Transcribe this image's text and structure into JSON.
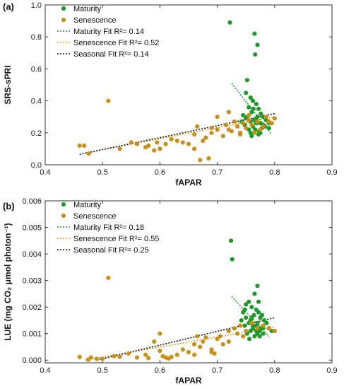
{
  "chart_data": [
    {
      "type": "scatter",
      "panel_label": "(a)",
      "xlabel": "fAPAR",
      "ylabel": "SRS-sPRI",
      "xlim": [
        0.4,
        0.9
      ],
      "ylim": [
        0.0,
        1.0
      ],
      "xticks": [
        0.4,
        0.5,
        0.6,
        0.7,
        0.8,
        0.9
      ],
      "yticks": [
        0.0,
        0.2,
        0.4,
        0.6,
        0.8,
        1.0
      ],
      "xtick_labels": [
        "0.4",
        "0.5",
        "0.6",
        "0.7",
        "0.8",
        "0.9"
      ],
      "ytick_labels": [
        "0.0",
        "0.2",
        "0.4",
        "0.6",
        "0.8",
        "1.0"
      ],
      "grid": false,
      "legend_position": "top-left",
      "series": [
        {
          "name": "Maturity",
          "kind": "points",
          "color": "#1f9a2a",
          "x": [
            0.722,
            0.765,
            0.77,
            0.766,
            0.752,
            0.75,
            0.758,
            0.762,
            0.768,
            0.772,
            0.755,
            0.76,
            0.776,
            0.78,
            0.745,
            0.75,
            0.764,
            0.77,
            0.758,
            0.775,
            0.785,
            0.79,
            0.748,
            0.755,
            0.762,
            0.768,
            0.773,
            0.78,
            0.742,
            0.758,
            0.766,
            0.772,
            0.778,
            0.752,
            0.76,
            0.768,
            0.783,
            0.775,
            0.79,
            0.763
          ],
          "y": [
            0.89,
            0.82,
            0.75,
            0.69,
            0.53,
            0.45,
            0.42,
            0.4,
            0.38,
            0.35,
            0.36,
            0.33,
            0.32,
            0.3,
            0.31,
            0.29,
            0.28,
            0.3,
            0.27,
            0.26,
            0.28,
            0.23,
            0.25,
            0.22,
            0.24,
            0.26,
            0.21,
            0.25,
            0.27,
            0.2,
            0.22,
            0.19,
            0.23,
            0.3,
            0.18,
            0.29,
            0.24,
            0.2,
            0.26,
            0.35
          ]
        },
        {
          "name": "Senescence",
          "kind": "points",
          "color": "#c8901a",
          "x": [
            0.46,
            0.468,
            0.476,
            0.51,
            0.53,
            0.55,
            0.56,
            0.575,
            0.58,
            0.59,
            0.595,
            0.6,
            0.61,
            0.62,
            0.63,
            0.64,
            0.65,
            0.66,
            0.665,
            0.67,
            0.675,
            0.68,
            0.685,
            0.69,
            0.7,
            0.71,
            0.715,
            0.72,
            0.725,
            0.73,
            0.735,
            0.74,
            0.745,
            0.75,
            0.755,
            0.76,
            0.765,
            0.77,
            0.775,
            0.78,
            0.785,
            0.79,
            0.795,
            0.8,
            0.7,
            0.72,
            0.69,
            0.74,
            0.66,
            0.755
          ],
          "y": [
            0.12,
            0.12,
            0.07,
            0.4,
            0.1,
            0.14,
            0.13,
            0.11,
            0.12,
            0.09,
            0.14,
            0.1,
            0.13,
            0.16,
            0.15,
            0.14,
            0.13,
            0.19,
            0.24,
            0.03,
            0.15,
            0.17,
            0.04,
            0.2,
            0.22,
            0.18,
            0.25,
            0.22,
            0.21,
            0.27,
            0.24,
            0.19,
            0.26,
            0.23,
            0.28,
            0.25,
            0.2,
            0.27,
            0.22,
            0.24,
            0.3,
            0.27,
            0.26,
            0.29,
            0.3,
            0.33,
            0.23,
            0.2,
            0.1,
            0.31
          ]
        },
        {
          "name": "Maturity Fit",
          "r2_label": "R²= 0.14",
          "kind": "fit",
          "color": "#1f9a2a",
          "x": [
            0.725,
            0.795
          ],
          "y": [
            0.51,
            0.19
          ]
        },
        {
          "name": "Senescence Fit",
          "r2_label": "R²= 0.52",
          "kind": "fit",
          "color": "#e8a020",
          "x": [
            0.47,
            0.8
          ],
          "y": [
            0.075,
            0.3
          ]
        },
        {
          "name": "Seasonal Fit",
          "r2_label": "R²= 0.14",
          "kind": "fit",
          "color": "#111111",
          "x": [
            0.46,
            0.8
          ],
          "y": [
            0.065,
            0.32
          ]
        }
      ]
    },
    {
      "type": "scatter",
      "panel_label": "(b)",
      "xlabel": "fAPAR",
      "ylabel": "LUE (mg CO₂ μmol photon⁻¹)",
      "xlim": [
        0.4,
        0.9
      ],
      "ylim": [
        -0.0001,
        0.006
      ],
      "xticks": [
        0.4,
        0.5,
        0.6,
        0.7,
        0.8,
        0.9
      ],
      "yticks": [
        0.0,
        0.001,
        0.002,
        0.003,
        0.004,
        0.005,
        0.006
      ],
      "xtick_labels": [
        "0.4",
        "0.5",
        "0.6",
        "0.7",
        "0.8",
        "0.9"
      ],
      "ytick_labels": [
        "0.000",
        "0.001",
        "0.002",
        "0.003",
        "0.004",
        "0.005",
        "0.006"
      ],
      "grid": false,
      "legend_position": "top-left",
      "series": [
        {
          "name": "Maturity",
          "kind": "points",
          "color": "#1f9a2a",
          "x": [
            0.724,
            0.726,
            0.77,
            0.765,
            0.755,
            0.76,
            0.75,
            0.768,
            0.772,
            0.778,
            0.745,
            0.75,
            0.758,
            0.764,
            0.77,
            0.775,
            0.782,
            0.748,
            0.755,
            0.762,
            0.768,
            0.774,
            0.78,
            0.786,
            0.752,
            0.758,
            0.765,
            0.77,
            0.776,
            0.742,
            0.756,
            0.762,
            0.768,
            0.774,
            0.79,
            0.748,
            0.78,
            0.795,
            0.76,
            0.772
          ],
          "y": [
            0.0045,
            0.0038,
            0.0028,
            0.0025,
            0.0022,
            0.002,
            0.0021,
            0.0019,
            0.0018,
            0.0017,
            0.0018,
            0.0016,
            0.0015,
            0.0017,
            0.0014,
            0.0016,
            0.0015,
            0.0013,
            0.0014,
            0.0012,
            0.0013,
            0.0011,
            0.0012,
            0.0014,
            0.001,
            0.0011,
            0.0009,
            0.001,
            0.0012,
            0.0015,
            0.0008,
            0.0013,
            0.0011,
            0.0009,
            0.0012,
            0.0019,
            0.001,
            0.0011,
            0.0016,
            0.0022
          ]
        },
        {
          "name": "Senescence",
          "kind": "points",
          "color": "#c8901a",
          "x": [
            0.46,
            0.475,
            0.48,
            0.49,
            0.51,
            0.52,
            0.53,
            0.545,
            0.56,
            0.575,
            0.58,
            0.59,
            0.6,
            0.605,
            0.61,
            0.615,
            0.62,
            0.63,
            0.64,
            0.65,
            0.66,
            0.665,
            0.67,
            0.675,
            0.68,
            0.69,
            0.695,
            0.7,
            0.705,
            0.71,
            0.72,
            0.73,
            0.735,
            0.74,
            0.745,
            0.75,
            0.76,
            0.77,
            0.78,
            0.79,
            0.8,
            0.6,
            0.66,
            0.69,
            0.72,
            0.5
          ],
          "y": [
            0.00012,
            2e-05,
            0.0001,
            5e-05,
            0.0031,
            0.00015,
            0.00013,
            0.00025,
            0.0001,
            0.0002,
            8e-05,
            0.0007,
            0.00035,
            0.00015,
            0.0001,
            6e-05,
            0.00012,
            0.0002,
            0.0004,
            0.0003,
            0.0006,
            0.0009,
            0.0005,
            0.0007,
            0.00085,
            0.0004,
            0.00025,
            0.0008,
            0.0009,
            0.0006,
            0.0011,
            0.0012,
            0.001,
            0.0013,
            0.0009,
            0.0011,
            0.0014,
            0.0012,
            0.0013,
            0.0012,
            0.0011,
            0.001,
            0.0002,
            0.0003,
            0.0007,
            5e-05
          ]
        },
        {
          "name": "Maturity Fit",
          "r2_label": "R²= 0.18",
          "kind": "fit",
          "color": "#1f9a2a",
          "x": [
            0.725,
            0.79
          ],
          "y": [
            0.0024,
            0.0009
          ]
        },
        {
          "name": "Senescence Fit",
          "r2_label": "R²= 0.55",
          "kind": "fit",
          "color": "#e8a020",
          "x": [
            0.47,
            0.8
          ],
          "y": [
            0.0,
            0.00125
          ]
        },
        {
          "name": "Seasonal Fit",
          "r2_label": "R²= 0.25",
          "kind": "fit",
          "color": "#111111",
          "x": [
            0.49,
            0.8
          ],
          "y": [
            0.0,
            0.0016
          ]
        }
      ]
    }
  ]
}
